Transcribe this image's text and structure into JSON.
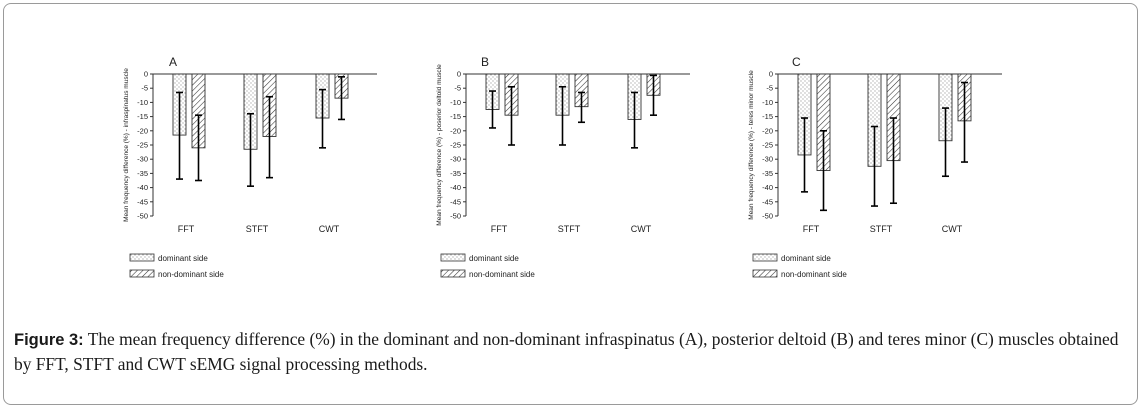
{
  "figure": {
    "caption_label": "Figure 3:",
    "caption_text": " The mean frequency difference (%) in the dominant and non-dominant infraspinatus (A), posterior deltoid (B) and teres minor (C) muscles obtained by FFT, STFT and CWT sEMG signal processing methods."
  },
  "chart_data": [
    {
      "type": "bar",
      "panel_label": "A",
      "ylabel": "Mean frequency difference (%) - infraspinatus muscle",
      "categories": [
        "FFT",
        "STFT",
        "CWT"
      ],
      "ylim": [
        -50,
        0
      ],
      "yticks": [
        "0",
        "-5",
        "-10",
        "-15",
        "-20",
        "-25",
        "-30",
        "-35",
        "-40",
        "-45",
        "-50"
      ],
      "series": [
        {
          "name": "dominant side",
          "values": [
            -21.5,
            -26.5,
            -15.5
          ],
          "error_ends": [
            -37,
            -39.5,
            -26
          ]
        },
        {
          "name": "non-dominant side",
          "values": [
            -26,
            -22,
            -8.5
          ],
          "error_ends": [
            -37.5,
            -36.5,
            -16
          ]
        }
      ],
      "error_top_ends": {
        "dominant side": [
          -6.5,
          -14,
          -5.5
        ],
        "non-dominant side": [
          -14.5,
          -8,
          -1
        ]
      }
    },
    {
      "type": "bar",
      "panel_label": "B",
      "ylabel": "Mean frequency difference (%) - poserior deltoid muscle",
      "categories": [
        "FFT",
        "STFT",
        "CWT"
      ],
      "ylim": [
        -50,
        0
      ],
      "yticks": [
        "0",
        "-5",
        "-10",
        "-15",
        "-20",
        "-25",
        "-30",
        "-35",
        "-40",
        "-45",
        "-50"
      ],
      "series": [
        {
          "name": "dominant side",
          "values": [
            -12.5,
            -14.5,
            -16
          ],
          "error_ends": [
            -19,
            -25,
            -26
          ]
        },
        {
          "name": "non-dominant side",
          "values": [
            -14.5,
            -11.5,
            -7.5
          ],
          "error_ends": [
            -25,
            -17,
            -14.5
          ]
        }
      ],
      "error_top_ends": {
        "dominant side": [
          -6,
          -4.5,
          -6.5
        ],
        "non-dominant side": [
          -4.5,
          -6.5,
          -0.5
        ]
      }
    },
    {
      "type": "bar",
      "panel_label": "C",
      "ylabel": "Mean frequency difference (%) - teres minor muscle",
      "categories": [
        "FFT",
        "STFT",
        "CWT"
      ],
      "ylim": [
        -50,
        0
      ],
      "yticks": [
        "0",
        "-5",
        "-10",
        "-15",
        "-20",
        "-25",
        "-30",
        "-35",
        "-40",
        "-45",
        "-50"
      ],
      "series": [
        {
          "name": "dominant side",
          "values": [
            -28.5,
            -32.5,
            -23.5
          ],
          "error_ends": [
            -41.5,
            -46.5,
            -36
          ]
        },
        {
          "name": "non-dominant side",
          "values": [
            -34,
            -30.5,
            -16.5
          ],
          "error_ends": [
            -48,
            -45.5,
            -31
          ]
        }
      ],
      "error_top_ends": {
        "dominant side": [
          -15.5,
          -18.5,
          -12
        ],
        "non-dominant side": [
          -20,
          -15.5,
          -3
        ]
      }
    }
  ]
}
